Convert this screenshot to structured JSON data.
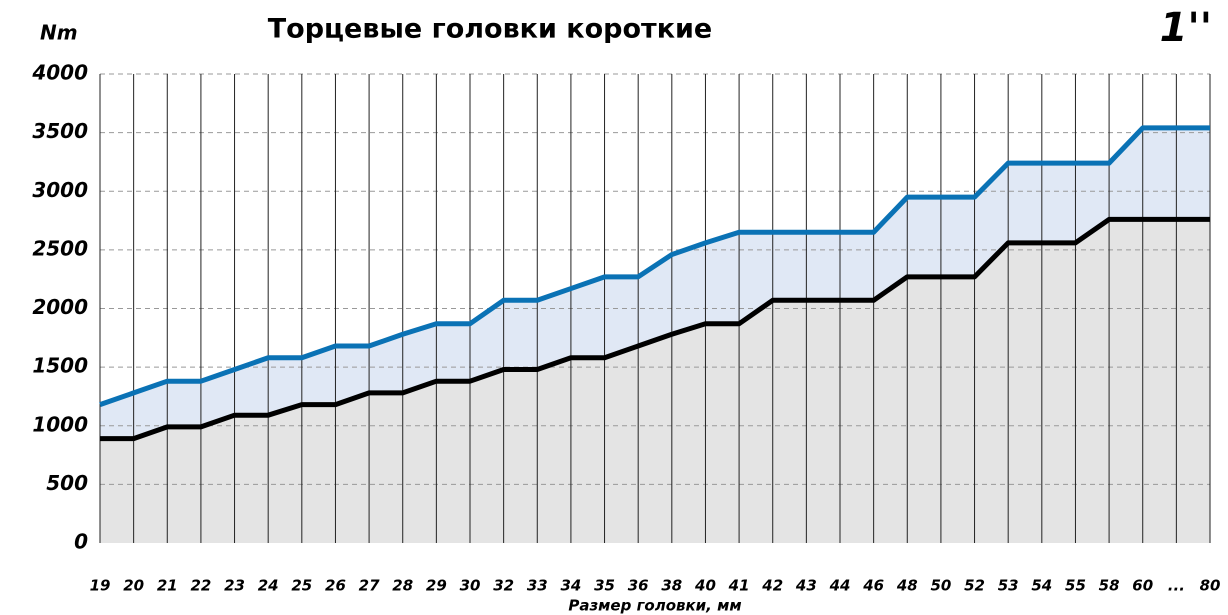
{
  "chart_data": {
    "type": "line",
    "title": "Торцевые головки короткие",
    "y_unit": "Nm",
    "corner_label": "1''",
    "x_label": "Размер головки, мм",
    "categories": [
      "19",
      "20",
      "21",
      "22",
      "23",
      "24",
      "25",
      "26",
      "27",
      "28",
      "29",
      "30",
      "32",
      "33",
      "34",
      "35",
      "36",
      "38",
      "40",
      "41",
      "42",
      "43",
      "44",
      "46",
      "48",
      "50",
      "52",
      "53",
      "54",
      "55",
      "58",
      "60",
      "...",
      "80"
    ],
    "series": [
      {
        "color": "#0a72b5",
        "fill": "#e0e8f5",
        "values": [
          1180,
          1280,
          1380,
          1380,
          1480,
          1580,
          1580,
          1680,
          1680,
          1780,
          1870,
          1870,
          2070,
          2070,
          2170,
          2270,
          2270,
          2460,
          2560,
          2650,
          2650,
          2650,
          2650,
          2650,
          2950,
          2950,
          2950,
          3240,
          3240,
          3240,
          3240,
          3540,
          3540,
          3540
        ]
      },
      {
        "color": "#000000",
        "fill": "#e4e4e4",
        "values": [
          890,
          890,
          990,
          990,
          1090,
          1090,
          1180,
          1180,
          1280,
          1280,
          1380,
          1380,
          1480,
          1480,
          1580,
          1580,
          1680,
          1780,
          1870,
          1870,
          2070,
          2070,
          2070,
          2070,
          2270,
          2270,
          2270,
          2560,
          2560,
          2560,
          2760,
          2760,
          2760,
          2760
        ]
      }
    ],
    "ylim": [
      0,
      4000
    ],
    "yticks": [
      0,
      500,
      1000,
      1500,
      2000,
      2500,
      3000,
      3500,
      4000
    ],
    "grid": true
  }
}
